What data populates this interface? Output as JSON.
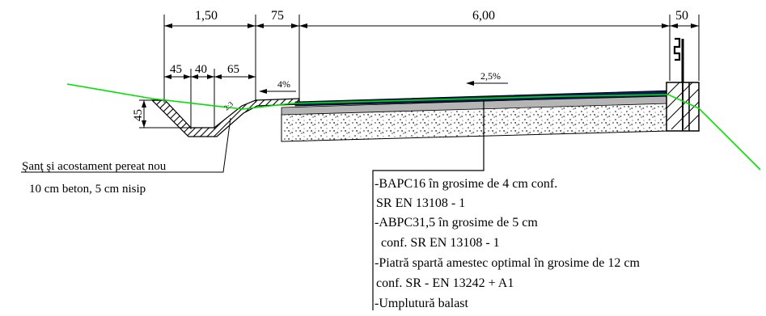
{
  "dimensions": {
    "d150": "1,50",
    "d75": "75",
    "d600": "6,00",
    "d50": "50",
    "d45a": "45",
    "d40": "40",
    "d65": "65",
    "d45v": "45"
  },
  "slopes": {
    "shoulder": "4%",
    "road": "2,5%",
    "ditch_ratio": "2:3"
  },
  "ditch_note": {
    "line1": "Şanţ şi acostament pereat  nou",
    "line2": "10 cm beton, 5 cm  nisip"
  },
  "layers": [
    "-BAPC16 în grosime de 4 cm conf.",
    "SR EN 13108 - 1",
    "-ABPC31,5  în grosime de 5 cm",
    " conf. SR EN 13108 - 1",
    "-Piatră spartă amestec optimal în grosime de 12 cm",
    "conf. SR - EN 13242 + A1",
    "-Umplutură balast"
  ],
  "colors": {
    "terrain": "#00e000",
    "asphalt": "#0a1a5c",
    "line": "#000000",
    "concrete": "#ffffff"
  }
}
